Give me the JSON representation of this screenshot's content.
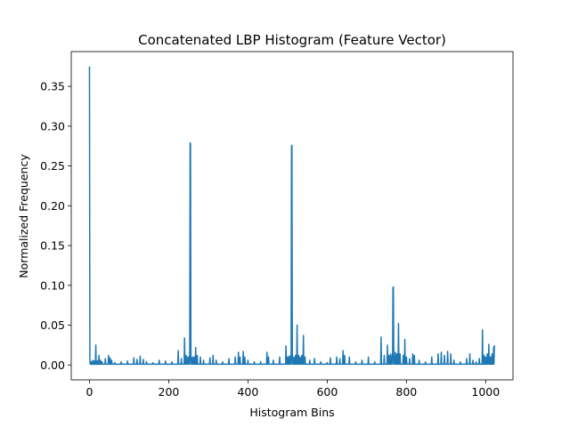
{
  "chart_data": {
    "type": "line",
    "title": "Concatenated LBP Histogram (Feature Vector)",
    "xlabel": "Histogram Bins",
    "ylabel": "Normalized Frequency",
    "xlim": [
      -46,
      1069
    ],
    "ylim": [
      -0.0187,
      0.3937
    ],
    "xticks": [
      0,
      200,
      400,
      600,
      800,
      1000
    ],
    "xtick_labels": [
      "0",
      "200",
      "400",
      "600",
      "800",
      "1000"
    ],
    "yticks": [
      0.0,
      0.05,
      0.1,
      0.15,
      0.2,
      0.25,
      0.3,
      0.35
    ],
    "ytick_labels": [
      "0.00",
      "0.05",
      "0.10",
      "0.15",
      "0.20",
      "0.25",
      "0.30",
      "0.35"
    ],
    "grid": false,
    "series": [
      {
        "color": "#1f77b4",
        "n_bins": 1024,
        "baseline": 0.001,
        "peaks": [
          [
            0,
            0.375
          ],
          [
            1,
            0.006
          ],
          [
            4,
            0.004
          ],
          [
            8,
            0.006
          ],
          [
            12,
            0.005
          ],
          [
            16,
            0.025
          ],
          [
            20,
            0.005
          ],
          [
            24,
            0.012
          ],
          [
            28,
            0.006
          ],
          [
            32,
            0.004
          ],
          [
            40,
            0.008
          ],
          [
            48,
            0.012
          ],
          [
            52,
            0.009
          ],
          [
            56,
            0.006
          ],
          [
            64,
            0.003
          ],
          [
            80,
            0.004
          ],
          [
            96,
            0.005
          ],
          [
            112,
            0.009
          ],
          [
            120,
            0.007
          ],
          [
            128,
            0.011
          ],
          [
            136,
            0.007
          ],
          [
            144,
            0.004
          ],
          [
            160,
            0.003
          ],
          [
            176,
            0.006
          ],
          [
            192,
            0.005
          ],
          [
            208,
            0.004
          ],
          [
            224,
            0.018
          ],
          [
            232,
            0.008
          ],
          [
            240,
            0.034
          ],
          [
            244,
            0.012
          ],
          [
            248,
            0.01
          ],
          [
            252,
            0.011
          ],
          [
            254,
            0.279
          ],
          [
            255,
            0.278
          ],
          [
            256,
            0.012
          ],
          [
            260,
            0.01
          ],
          [
            264,
            0.01
          ],
          [
            268,
            0.022
          ],
          [
            272,
            0.012
          ],
          [
            280,
            0.01
          ],
          [
            288,
            0.006
          ],
          [
            304,
            0.009
          ],
          [
            312,
            0.012
          ],
          [
            320,
            0.006
          ],
          [
            336,
            0.004
          ],
          [
            352,
            0.008
          ],
          [
            368,
            0.01
          ],
          [
            376,
            0.016
          ],
          [
            380,
            0.01
          ],
          [
            388,
            0.017
          ],
          [
            392,
            0.01
          ],
          [
            400,
            0.006
          ],
          [
            416,
            0.004
          ],
          [
            432,
            0.004
          ],
          [
            448,
            0.016
          ],
          [
            452,
            0.01
          ],
          [
            464,
            0.006
          ],
          [
            480,
            0.01
          ],
          [
            496,
            0.024
          ],
          [
            500,
            0.01
          ],
          [
            504,
            0.011
          ],
          [
            508,
            0.012
          ],
          [
            510,
            0.275
          ],
          [
            511,
            0.276
          ],
          [
            512,
            0.012
          ],
          [
            516,
            0.01
          ],
          [
            520,
            0.012
          ],
          [
            524,
            0.05
          ],
          [
            528,
            0.012
          ],
          [
            532,
            0.01
          ],
          [
            536,
            0.012
          ],
          [
            540,
            0.037
          ],
          [
            544,
            0.01
          ],
          [
            556,
            0.006
          ],
          [
            568,
            0.008
          ],
          [
            584,
            0.004
          ],
          [
            600,
            0.003
          ],
          [
            608,
            0.009
          ],
          [
            624,
            0.01
          ],
          [
            632,
            0.008
          ],
          [
            640,
            0.018
          ],
          [
            644,
            0.012
          ],
          [
            656,
            0.01
          ],
          [
            672,
            0.004
          ],
          [
            688,
            0.006
          ],
          [
            704,
            0.01
          ],
          [
            720,
            0.004
          ],
          [
            736,
            0.035
          ],
          [
            744,
            0.012
          ],
          [
            752,
            0.025
          ],
          [
            756,
            0.012
          ],
          [
            760,
            0.014
          ],
          [
            764,
            0.012
          ],
          [
            766,
            0.097
          ],
          [
            767,
            0.098
          ],
          [
            768,
            0.014
          ],
          [
            772,
            0.016
          ],
          [
            776,
            0.014
          ],
          [
            780,
            0.052
          ],
          [
            784,
            0.014
          ],
          [
            792,
            0.012
          ],
          [
            796,
            0.032
          ],
          [
            800,
            0.01
          ],
          [
            808,
            0.008
          ],
          [
            816,
            0.014
          ],
          [
            820,
            0.012
          ],
          [
            832,
            0.006
          ],
          [
            848,
            0.004
          ],
          [
            864,
            0.01
          ],
          [
            880,
            0.014
          ],
          [
            888,
            0.016
          ],
          [
            896,
            0.012
          ],
          [
            904,
            0.017
          ],
          [
            912,
            0.014
          ],
          [
            920,
            0.006
          ],
          [
            936,
            0.004
          ],
          [
            952,
            0.008
          ],
          [
            960,
            0.014
          ],
          [
            968,
            0.006
          ],
          [
            976,
            0.004
          ],
          [
            984,
            0.008
          ],
          [
            992,
            0.044
          ],
          [
            996,
            0.012
          ],
          [
            1000,
            0.01
          ],
          [
            1004,
            0.014
          ],
          [
            1008,
            0.026
          ],
          [
            1012,
            0.01
          ],
          [
            1016,
            0.014
          ],
          [
            1020,
            0.022
          ],
          [
            1022,
            0.024
          ],
          [
            1023,
            0.023
          ]
        ]
      }
    ]
  }
}
